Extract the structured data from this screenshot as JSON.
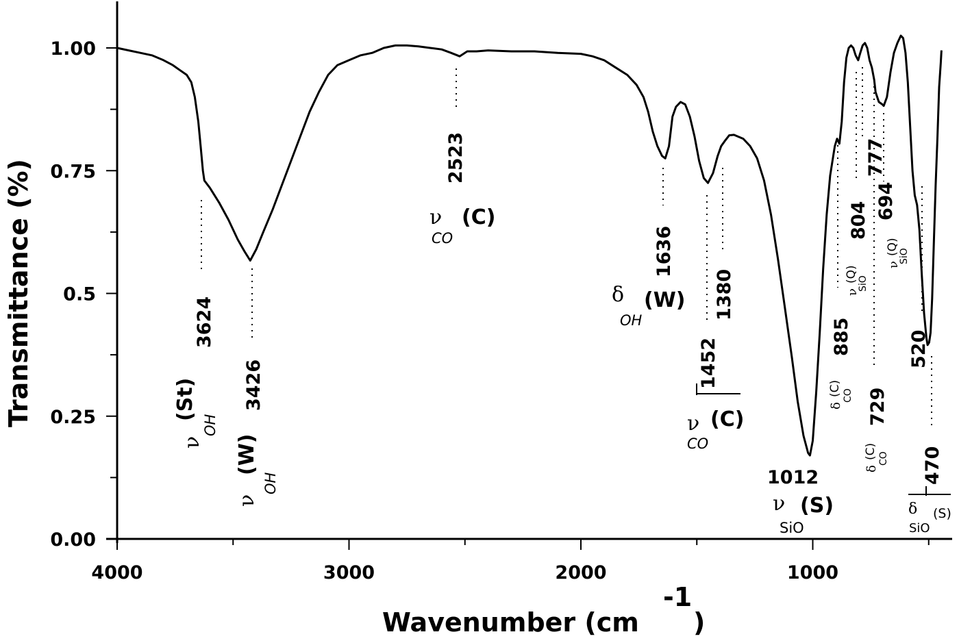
{
  "chart_data": {
    "type": "line",
    "title": "",
    "xlabel": "Wavenumber (cm",
    "xlabel_superscript": "-1",
    "xlabel_close": ")",
    "ylabel": "Transmittance (%)",
    "xlim": [
      4000,
      400
    ],
    "ylim": [
      0,
      1.0
    ],
    "x_reversed": true,
    "grid": false,
    "legend": null,
    "x_ticks": [
      {
        "value": 4000,
        "label": "4000"
      },
      {
        "value": 3500,
        "label": ""
      },
      {
        "value": 3000,
        "label": "3000"
      },
      {
        "value": 2500,
        "label": ""
      },
      {
        "value": 2000,
        "label": "2000"
      },
      {
        "value": 1500,
        "label": ""
      },
      {
        "value": 1000,
        "label": "1000"
      },
      {
        "value": 500,
        "label": ""
      }
    ],
    "y_ticks": [
      {
        "value": 1.0,
        "label": "1.00"
      },
      {
        "value": 0.875,
        "label": ""
      },
      {
        "value": 0.75,
        "label": "0.75"
      },
      {
        "value": 0.625,
        "label": ""
      },
      {
        "value": 0.5,
        "label": "0.5"
      },
      {
        "value": 0.375,
        "label": ""
      },
      {
        "value": 0.25,
        "label": "0.25"
      },
      {
        "value": 0.125,
        "label": ""
      },
      {
        "value": 0.0,
        "label": "0.00"
      }
    ],
    "series": [
      {
        "name": "IR spectrum",
        "color": "#000000",
        "points": [
          [
            4000,
            1.0
          ],
          [
            3950,
            0.995
          ],
          [
            3900,
            0.99
          ],
          [
            3850,
            0.985
          ],
          [
            3800,
            0.975
          ],
          [
            3760,
            0.965
          ],
          [
            3730,
            0.955
          ],
          [
            3700,
            0.945
          ],
          [
            3680,
            0.93
          ],
          [
            3665,
            0.9
          ],
          [
            3650,
            0.85
          ],
          [
            3640,
            0.8
          ],
          [
            3630,
            0.75
          ],
          [
            3624,
            0.73
          ],
          [
            3600,
            0.715
          ],
          [
            3560,
            0.685
          ],
          [
            3520,
            0.65
          ],
          [
            3480,
            0.61
          ],
          [
            3450,
            0.585
          ],
          [
            3426,
            0.567
          ],
          [
            3400,
            0.59
          ],
          [
            3370,
            0.625
          ],
          [
            3330,
            0.67
          ],
          [
            3290,
            0.72
          ],
          [
            3250,
            0.77
          ],
          [
            3210,
            0.82
          ],
          [
            3170,
            0.87
          ],
          [
            3130,
            0.91
          ],
          [
            3090,
            0.945
          ],
          [
            3050,
            0.965
          ],
          [
            3000,
            0.975
          ],
          [
            2950,
            0.985
          ],
          [
            2900,
            0.99
          ],
          [
            2850,
            1.0
          ],
          [
            2800,
            1.005
          ],
          [
            2750,
            1.005
          ],
          [
            2700,
            1.003
          ],
          [
            2650,
            1.0
          ],
          [
            2600,
            0.997
          ],
          [
            2560,
            0.99
          ],
          [
            2523,
            0.983
          ],
          [
            2490,
            0.993
          ],
          [
            2450,
            0.993
          ],
          [
            2400,
            0.995
          ],
          [
            2300,
            0.993
          ],
          [
            2200,
            0.993
          ],
          [
            2100,
            0.99
          ],
          [
            2000,
            0.988
          ],
          [
            1950,
            0.983
          ],
          [
            1900,
            0.975
          ],
          [
            1850,
            0.96
          ],
          [
            1800,
            0.945
          ],
          [
            1760,
            0.925
          ],
          [
            1730,
            0.9
          ],
          [
            1710,
            0.87
          ],
          [
            1690,
            0.83
          ],
          [
            1670,
            0.8
          ],
          [
            1650,
            0.78
          ],
          [
            1636,
            0.775
          ],
          [
            1620,
            0.8
          ],
          [
            1605,
            0.86
          ],
          [
            1590,
            0.88
          ],
          [
            1570,
            0.89
          ],
          [
            1550,
            0.885
          ],
          [
            1530,
            0.86
          ],
          [
            1510,
            0.82
          ],
          [
            1490,
            0.77
          ],
          [
            1470,
            0.735
          ],
          [
            1452,
            0.725
          ],
          [
            1430,
            0.745
          ],
          [
            1410,
            0.78
          ],
          [
            1395,
            0.8
          ],
          [
            1380,
            0.81
          ],
          [
            1360,
            0.822
          ],
          [
            1340,
            0.823
          ],
          [
            1300,
            0.815
          ],
          [
            1270,
            0.8
          ],
          [
            1240,
            0.775
          ],
          [
            1210,
            0.73
          ],
          [
            1180,
            0.66
          ],
          [
            1150,
            0.57
          ],
          [
            1120,
            0.47
          ],
          [
            1090,
            0.37
          ],
          [
            1065,
            0.28
          ],
          [
            1040,
            0.21
          ],
          [
            1020,
            0.175
          ],
          [
            1012,
            0.17
          ],
          [
            1000,
            0.2
          ],
          [
            985,
            0.3
          ],
          [
            970,
            0.42
          ],
          [
            955,
            0.55
          ],
          [
            940,
            0.66
          ],
          [
            925,
            0.74
          ],
          [
            905,
            0.8
          ],
          [
            895,
            0.815
          ],
          [
            885,
            0.805
          ],
          [
            875,
            0.85
          ],
          [
            865,
            0.93
          ],
          [
            855,
            0.98
          ],
          [
            845,
            1.0
          ],
          [
            835,
            1.005
          ],
          [
            825,
            1.0
          ],
          [
            815,
            0.985
          ],
          [
            804,
            0.975
          ],
          [
            795,
            0.99
          ],
          [
            785,
            1.005
          ],
          [
            775,
            1.01
          ],
          [
            765,
            1.0
          ],
          [
            755,
            0.975
          ],
          [
            745,
            0.96
          ],
          [
            735,
            0.935
          ],
          [
            729,
            0.91
          ],
          [
            715,
            0.89
          ],
          [
            700,
            0.885
          ],
          [
            694,
            0.882
          ],
          [
            680,
            0.9
          ],
          [
            665,
            0.95
          ],
          [
            650,
            0.99
          ],
          [
            635,
            1.01
          ],
          [
            620,
            1.025
          ],
          [
            610,
            1.02
          ],
          [
            600,
            0.99
          ],
          [
            590,
            0.93
          ],
          [
            580,
            0.84
          ],
          [
            570,
            0.75
          ],
          [
            560,
            0.7
          ],
          [
            550,
            0.68
          ],
          [
            540,
            0.63
          ],
          [
            530,
            0.54
          ],
          [
            520,
            0.46
          ],
          [
            510,
            0.41
          ],
          [
            505,
            0.395
          ],
          [
            498,
            0.4
          ],
          [
            492,
            0.42
          ],
          [
            485,
            0.49
          ],
          [
            478,
            0.6
          ],
          [
            470,
            0.72
          ],
          [
            462,
            0.82
          ],
          [
            455,
            0.92
          ],
          [
            448,
            0.97
          ],
          [
            445,
            0.995
          ]
        ]
      }
    ],
    "annotations": [
      {
        "wavenumber": 3624,
        "label": "3624",
        "assignment": "ν_OH(St)"
      },
      {
        "wavenumber": 3426,
        "label": "3426",
        "assignment": "ν_OH(W)"
      },
      {
        "wavenumber": 2523,
        "label": "2523",
        "assignment": "ν_CO(C)"
      },
      {
        "wavenumber": 1636,
        "label": "1636",
        "assignment": "δ_OH(W)"
      },
      {
        "wavenumber": 1452,
        "label": "1452",
        "assignment": "ν_CO(C)"
      },
      {
        "wavenumber": 1380,
        "label": "1380",
        "assignment": "ν_CO(C)"
      },
      {
        "wavenumber": 1012,
        "label": "1012",
        "assignment": "ν_SiO(S)"
      },
      {
        "wavenumber": 885,
        "label": "885",
        "assignment": "δ_CO(C)"
      },
      {
        "wavenumber": 804,
        "label": "804",
        "assignment": "ν_SiO(Q)"
      },
      {
        "wavenumber": 777,
        "label": "777",
        "assignment": "ν_SiO(Q)"
      },
      {
        "wavenumber": 729,
        "label": "729",
        "assignment": "δ_CO(C)"
      },
      {
        "wavenumber": 694,
        "label": "694",
        "assignment": "ν_SiO(Q)"
      },
      {
        "wavenumber": 520,
        "label": "520",
        "assignment": "δ_SiO(S)"
      },
      {
        "wavenumber": 470,
        "label": "470",
        "assignment": "δ_SiO(S)"
      }
    ]
  },
  "labels": {
    "nu": "ν",
    "delta": "δ",
    "oh": "OH",
    "co": "CO",
    "sio": "SiO",
    "st": "(St)",
    "w": "(W)",
    "c": "(C)",
    "s": "(S)",
    "q": "(Q)",
    "n3624": "3624",
    "n3426": "3426",
    "n2523": "2523",
    "n1636": "1636",
    "n1452": "1452",
    "n1380": "1380",
    "n1012": "1012",
    "n885": "885",
    "n804": "804",
    "n777": "777",
    "n729": "729",
    "n694": "694",
    "n520": "520",
    "n470": "470"
  }
}
